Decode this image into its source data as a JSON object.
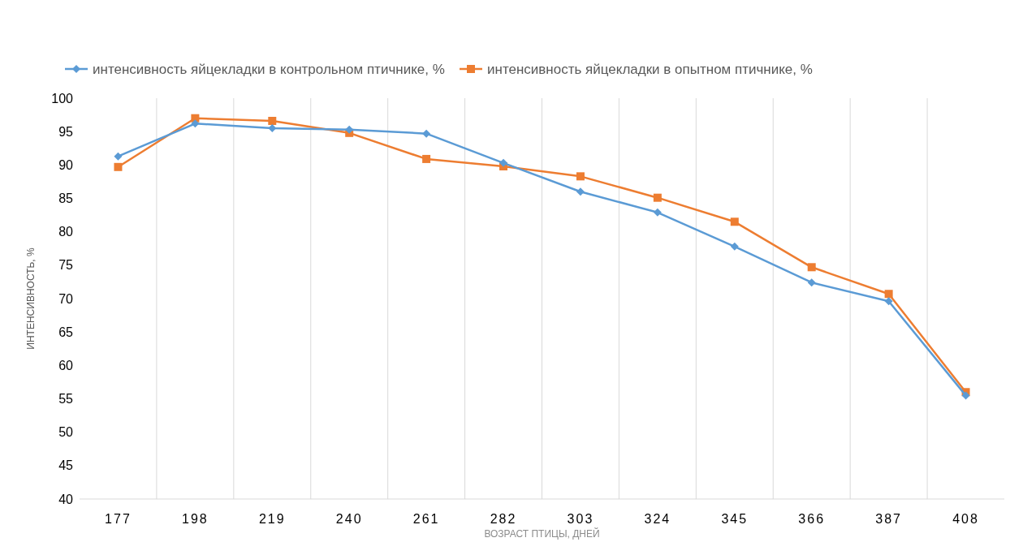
{
  "chart_data": {
    "type": "line",
    "xlabel": "ВОЗРАСТ ПТИЦЫ, ДНЕЙ",
    "ylabel": "ИНТЕНСИВНОСТЬ, %",
    "categories": [
      "177",
      "198",
      "219",
      "240",
      "261",
      "282",
      "303",
      "324",
      "345",
      "366",
      "387",
      "408"
    ],
    "series": [
      {
        "name": "интенсивность яйцекладки в контрольном птичнике, %",
        "color": "#5b9bd5",
        "marker": "diamond",
        "values": [
          91.3,
          96.2,
          95.5,
          95.3,
          94.7,
          90.3,
          86.0,
          82.9,
          77.8,
          72.4,
          69.6,
          55.5
        ]
      },
      {
        "name": "интенсивность яйцекладки в опытном птичнике, %",
        "color": "#ed7d31",
        "marker": "square",
        "values": [
          89.7,
          97.0,
          96.6,
          94.8,
          90.9,
          89.8,
          88.3,
          85.1,
          81.5,
          74.7,
          70.7,
          56.0
        ]
      }
    ],
    "ylim": [
      40,
      100
    ],
    "yticks": [
      40,
      45,
      50,
      55,
      60,
      65,
      70,
      75,
      80,
      85,
      90,
      95,
      100
    ],
    "grid": "x",
    "legend": "top",
    "line_style": "solid"
  }
}
